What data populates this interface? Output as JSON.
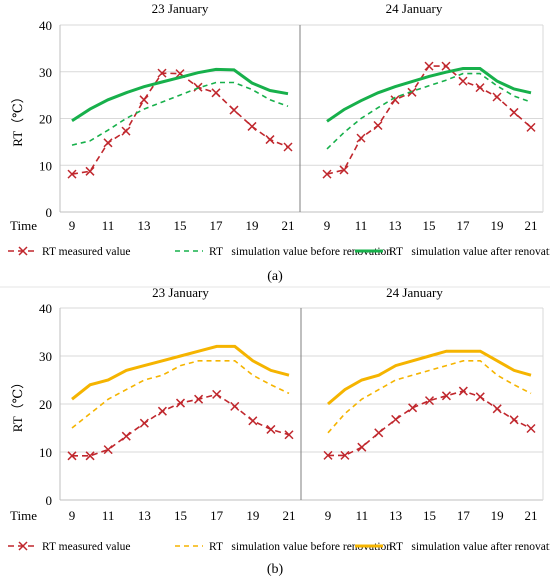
{
  "chart_data": [
    {
      "type": "line",
      "panel_label": "(a)",
      "ylabel": "RT（℃）",
      "xlabel": "Time",
      "ylim": [
        0,
        40
      ],
      "yticks": [
        0,
        10,
        20,
        30,
        40
      ],
      "xticks": [
        "9",
        "11",
        "13",
        "15",
        "17",
        "19",
        "21"
      ],
      "legend": "bottom",
      "colors": {
        "measured": "#c0272d",
        "before": "#17b04b",
        "after": "#17b04b"
      },
      "days": [
        {
          "title": "23 January",
          "x": [
            9,
            10,
            11,
            12,
            13,
            14,
            15,
            16,
            17,
            18,
            19,
            20,
            21
          ],
          "series": [
            {
              "name": "RT measured value",
              "values": [
                8.1,
                8.7,
                14.8,
                17.3,
                24.0,
                29.7,
                29.6,
                26.7,
                25.5,
                21.8,
                18.3,
                15.5,
                13.9
              ]
            },
            {
              "name": "RT   simulation value before renovation",
              "values": [
                14.3,
                15.2,
                17.5,
                20.0,
                22.0,
                23.5,
                25.0,
                26.5,
                27.7,
                27.7,
                26.2,
                24.0,
                22.6
              ]
            },
            {
              "name": "RT   simulation value after renovation",
              "values": [
                19.5,
                22.0,
                24.0,
                25.5,
                26.8,
                27.8,
                28.8,
                29.8,
                30.5,
                30.4,
                27.6,
                26.0,
                25.3
              ]
            }
          ]
        },
        {
          "title": "24 January",
          "x": [
            9,
            10,
            11,
            12,
            13,
            14,
            15,
            16,
            17,
            18,
            19,
            20,
            21
          ],
          "series": [
            {
              "name": "RT measured value",
              "values": [
                8.1,
                9.0,
                15.8,
                18.5,
                24.0,
                25.6,
                31.2,
                31.2,
                28.0,
                26.6,
                24.6,
                21.3,
                18.1
              ]
            },
            {
              "name": "RT   simulation value before renovation",
              "values": [
                13.5,
                17.0,
                20.0,
                22.3,
                24.5,
                25.8,
                27.0,
                28.2,
                29.6,
                29.6,
                27.0,
                24.8,
                23.5
              ]
            },
            {
              "name": "RT   simulation value after renovation",
              "values": [
                19.4,
                21.9,
                23.8,
                25.5,
                26.8,
                27.9,
                29.0,
                29.9,
                30.7,
                30.7,
                28.0,
                26.3,
                25.5
              ]
            }
          ]
        }
      ]
    },
    {
      "type": "line",
      "panel_label": "(b)",
      "ylabel": "RT（℃）",
      "xlabel": "Time",
      "ylim": [
        0,
        40
      ],
      "yticks": [
        0,
        10,
        20,
        30,
        40
      ],
      "xticks": [
        "9",
        "11",
        "13",
        "15",
        "17",
        "19",
        "21"
      ],
      "legend": "bottom",
      "colors": {
        "measured": "#c0272d",
        "before": "#f5b400",
        "after": "#f5b400"
      },
      "days": [
        {
          "title": "23 January",
          "x": [
            9,
            10,
            11,
            12,
            13,
            14,
            15,
            16,
            17,
            18,
            19,
            20,
            21
          ],
          "series": [
            {
              "name": "RT measured value",
              "values": [
                9.2,
                9.2,
                10.5,
                13.3,
                16.0,
                18.5,
                20.2,
                21.0,
                22.0,
                19.5,
                16.5,
                14.7,
                13.6
              ]
            },
            {
              "name": "RT   simulation value before renovation",
              "values": [
                15.0,
                18.0,
                21.0,
                23.0,
                25.0,
                26.0,
                28.0,
                29.0,
                29.0,
                29.0,
                26.0,
                24.0,
                22.2
              ]
            },
            {
              "name": "RT   simulation value after renovation",
              "values": [
                21.0,
                24.0,
                25.0,
                27.0,
                28.0,
                29.0,
                30.0,
                31.0,
                32.0,
                32.0,
                29.0,
                27.0,
                26.0
              ]
            }
          ]
        },
        {
          "title": "24 January",
          "x": [
            9,
            10,
            11,
            12,
            13,
            14,
            15,
            16,
            17,
            18,
            19,
            20,
            21
          ],
          "series": [
            {
              "name": "RT measured value",
              "values": [
                9.3,
                9.3,
                11.0,
                14.0,
                16.8,
                19.2,
                20.7,
                21.7,
                22.7,
                21.5,
                19.0,
                16.7,
                14.9
              ]
            },
            {
              "name": "RT   simulation value before renovation",
              "values": [
                14.0,
                18.0,
                21.0,
                23.0,
                25.0,
                26.0,
                27.0,
                28.0,
                29.0,
                29.0,
                26.0,
                24.0,
                22.2
              ]
            },
            {
              "name": "RT   simulation value after renovation",
              "values": [
                20.0,
                23.0,
                25.0,
                26.0,
                28.0,
                29.0,
                30.0,
                31.0,
                31.0,
                31.0,
                29.0,
                27.0,
                26.0
              ]
            }
          ]
        }
      ]
    }
  ]
}
